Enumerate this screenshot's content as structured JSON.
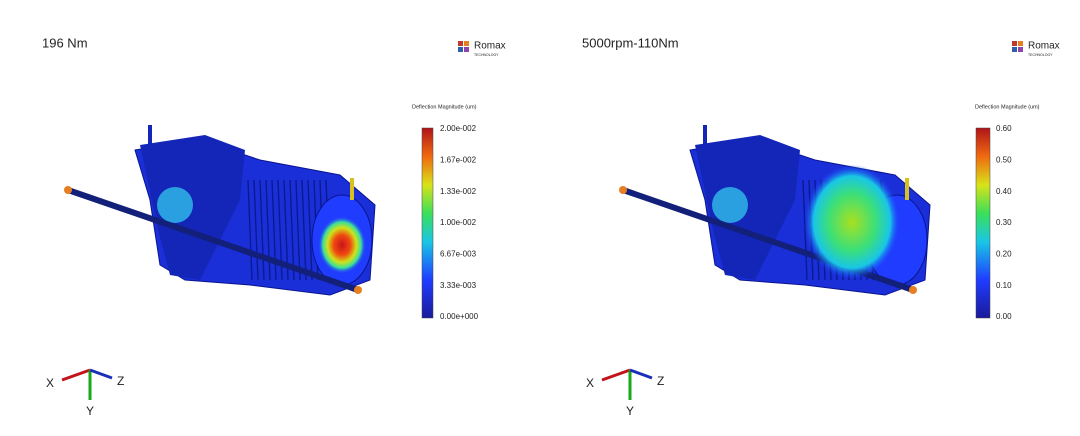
{
  "panels": [
    {
      "title": "196 Nm",
      "logo": {
        "name": "Romax",
        "sub": "TECHNOLOGY"
      },
      "legend": {
        "title": "Deflection Magnitude (um)",
        "labels": [
          "2.00e-002",
          "1.67e-002",
          "1.33e-002",
          "1.00e-002",
          "6.67e-003",
          "3.33e-003",
          "0.00e+000"
        ]
      },
      "axes": {
        "x": "X",
        "y": "Y",
        "z": "Z"
      }
    },
    {
      "title": "5000rpm-110Nm",
      "logo": {
        "name": "Romax",
        "sub": "TECHNOLOGY"
      },
      "legend": {
        "title": "Deflection Magnitude (um)",
        "labels": [
          "0.60",
          "0.50",
          "0.40",
          "0.30",
          "0.20",
          "0.10",
          "0.00"
        ]
      },
      "axes": {
        "x": "X",
        "y": "Y",
        "z": "Z"
      }
    }
  ]
}
